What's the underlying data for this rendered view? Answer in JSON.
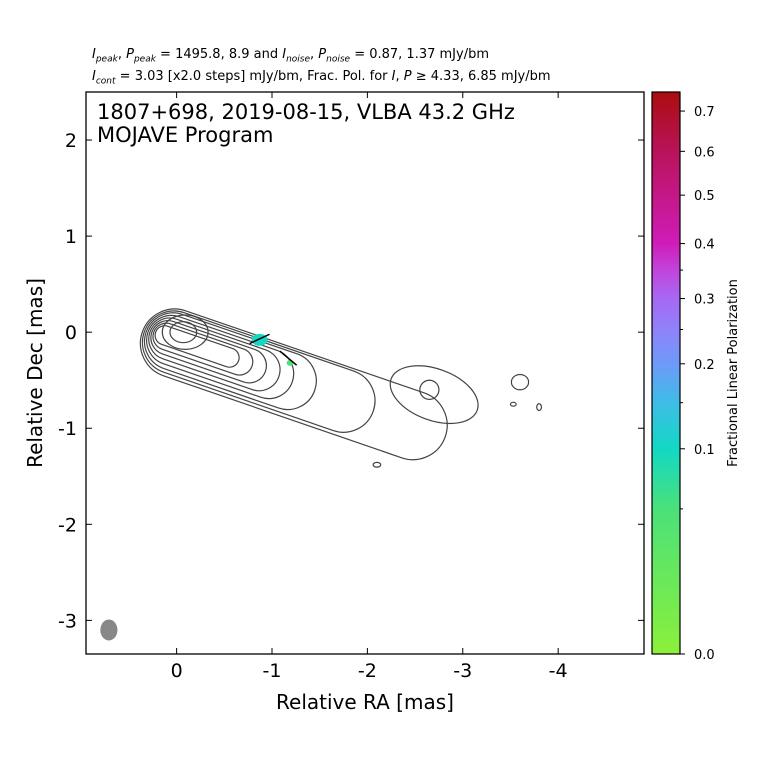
{
  "header": {
    "line1": {
      "i_peak": "I",
      "i_peak_sub": "peak",
      "sep1": ", ",
      "p_peak": "P",
      "p_peak_sub": "peak",
      "values1": " = 1495.8, 8.9 and ",
      "i_noise": "I",
      "i_noise_sub": "noise",
      "sep2": ", ",
      "p_noise": "P",
      "p_noise_sub": "noise",
      "values2": " = 0.87, 1.37 mJy/bm"
    },
    "line2": {
      "i_cont": "I",
      "i_cont_sub": "cont",
      "text_a": " = 3.03 [x2.0 steps] mJy/bm, Frac. Pol. for ",
      "i_sym": "I",
      "comma": ", ",
      "p_sym": "P",
      "text_b": " ≥  4.33, 6.85 mJy/bm"
    }
  },
  "chart_data": {
    "type": "contour",
    "title_line1": "1807+698, 2019-08-15, VLBA 43.2 GHz",
    "title_line2": "MOJAVE Program",
    "xlabel": "Relative RA [mas]",
    "ylabel": "Relative Dec [mas]",
    "xlim": [
      0.95,
      -4.9
    ],
    "ylim": [
      -3.35,
      2.5
    ],
    "x_ticks": [
      0,
      -1,
      -2,
      -3,
      -4
    ],
    "x_tick_labels": [
      "0",
      "-1",
      "-2",
      "-3",
      "-4"
    ],
    "y_ticks": [
      2,
      1,
      0,
      -1,
      -2,
      -3
    ],
    "y_tick_labels": [
      "2",
      "1",
      "0",
      "-1",
      "-2",
      "-3"
    ],
    "peak_intensity_mJy_bm": 1495.8,
    "peak_pol_mJy_bm": 8.9,
    "noise_intensity_mJy_bm": 0.87,
    "noise_pol_mJy_bm": 1.37,
    "lowest_contour_mJy_bm": 3.03,
    "contour_step_factor": 2.0,
    "pol_cutoff_I_mJy_bm": 4.33,
    "pol_cutoff_P_mJy_bm": 6.85,
    "contour_color": "#444444",
    "beam": {
      "ra": 0.71,
      "dec": -3.1,
      "major": 0.22,
      "minor": 0.18,
      "pa_deg": 0,
      "color": "#888888"
    },
    "core": {
      "ra": 0.0,
      "dec": 0.0
    },
    "components": [
      {
        "ra": -2.65,
        "dec": -0.6
      },
      {
        "ra": -3.6,
        "dec": -0.52
      },
      {
        "ra": -2.1,
        "dec": -1.38
      },
      {
        "ra": -3.53,
        "dec": -0.75
      },
      {
        "ra": -3.8,
        "dec": -0.78
      }
    ],
    "polarization_patches": [
      {
        "ra": -0.87,
        "dec": -0.08,
        "fraction": 0.12
      },
      {
        "ra": -1.19,
        "dec": -0.32,
        "fraction": 0.1
      }
    ],
    "evpa_vectors": [
      {
        "ra": -0.87,
        "dec": -0.07,
        "angle_deg": -25
      },
      {
        "ra": -1.17,
        "dec": -0.27,
        "angle_deg": 40
      }
    ],
    "colorbar": {
      "label": "Fractional Linear Polarization",
      "range": [
        0.0,
        0.75
      ],
      "scale": "power",
      "major_ticks": [
        0.0,
        0.1,
        0.2,
        0.3,
        0.4,
        0.5,
        0.6,
        0.7
      ],
      "major_tick_labels": [
        "0.0",
        "0.1",
        "0.2",
        "0.3",
        "0.4",
        "0.5",
        "0.6",
        "0.7"
      ],
      "minor_ticks": [
        0.05,
        0.15,
        0.25,
        0.35
      ],
      "stops": [
        {
          "v": 0.0,
          "color": "#8cf03a"
        },
        {
          "v": 0.05,
          "color": "#4ae17a"
        },
        {
          "v": 0.1,
          "color": "#13d8c4"
        },
        {
          "v": 0.15,
          "color": "#3ebde6"
        },
        {
          "v": 0.2,
          "color": "#6d9afa"
        },
        {
          "v": 0.25,
          "color": "#8f82fa"
        },
        {
          "v": 0.3,
          "color": "#a768f3"
        },
        {
          "v": 0.35,
          "color": "#c144dc"
        },
        {
          "v": 0.4,
          "color": "#cf1cb8"
        },
        {
          "v": 0.5,
          "color": "#c41787"
        },
        {
          "v": 0.6,
          "color": "#b8135a"
        },
        {
          "v": 0.75,
          "color": "#ab0d0d"
        }
      ]
    }
  }
}
